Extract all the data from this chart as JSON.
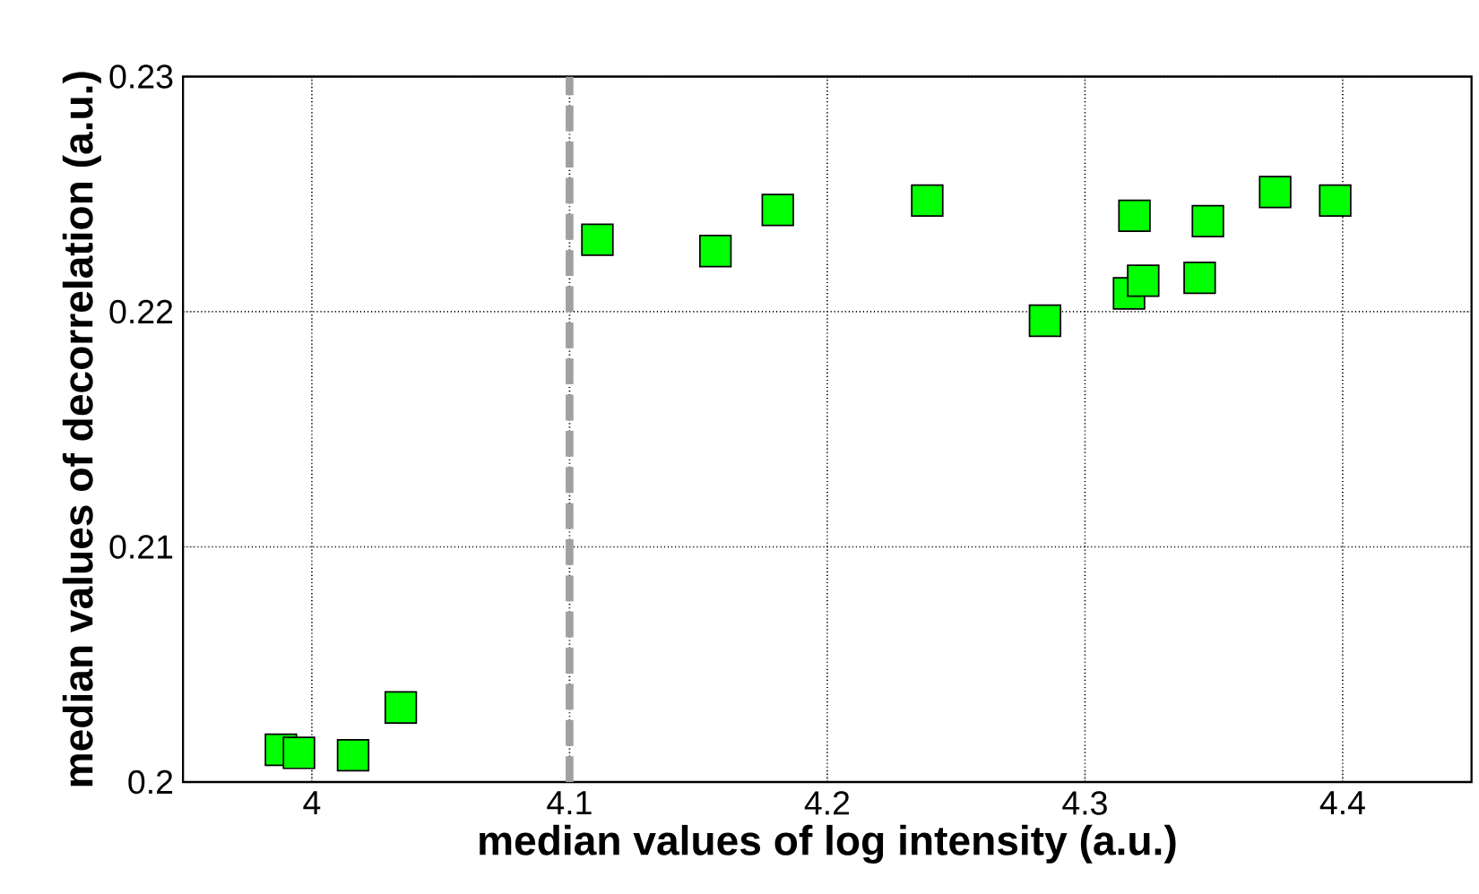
{
  "chart_data": {
    "type": "scatter",
    "xlabel": "median values of log intensity (a.u.)",
    "ylabel": "median values of decorrelation (a.u.)",
    "xlim": [
      3.95,
      4.45
    ],
    "ylim": [
      0.2,
      0.23
    ],
    "xticks": [
      {
        "value": 4,
        "label": "4"
      },
      4.1,
      4.2,
      4.3,
      4.4
    ],
    "yticks": [
      {
        "value": 0.2,
        "label": "0.2"
      },
      0.21,
      0.22,
      0.23
    ],
    "grid": true,
    "marker": "square",
    "ref_lines": [
      {
        "axis": "x",
        "value": 4.1,
        "color": "#a0a0a0",
        "line_style": "dashed"
      }
    ],
    "series": [
      {
        "color": "#00ff00",
        "x": [
          3.988,
          3.995,
          4.016,
          4.0345,
          4.1108,
          4.1566,
          4.1808,
          4.2388,
          4.2845,
          4.3171,
          4.3226,
          4.3192,
          4.3445,
          4.3477,
          4.3738,
          4.3971
        ],
        "values": [
          0.20137,
          0.20124,
          0.20114,
          0.20317,
          0.22306,
          0.22258,
          0.22433,
          0.22473,
          0.21962,
          0.22078,
          0.22132,
          0.22408,
          0.22144,
          0.22385,
          0.22509,
          0.22473
        ]
      }
    ]
  }
}
